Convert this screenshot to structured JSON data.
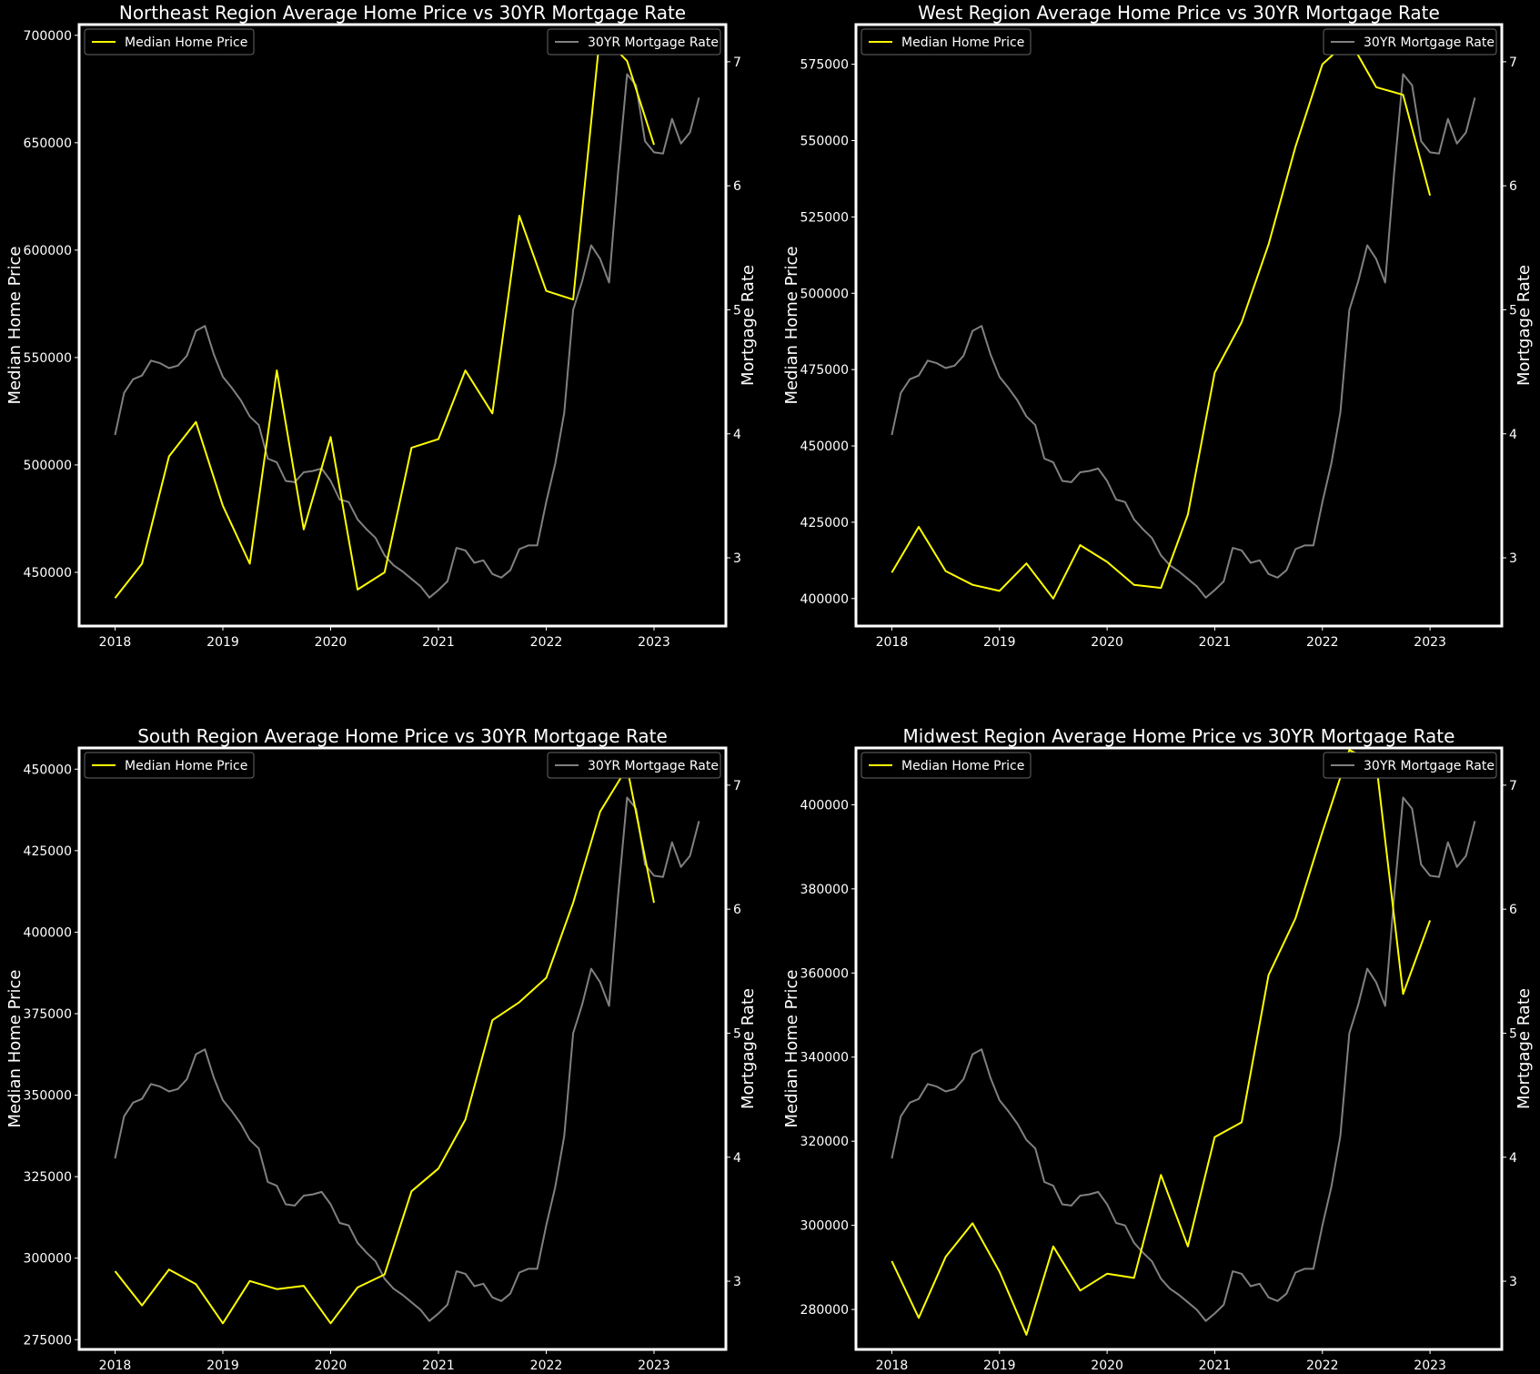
{
  "colors": {
    "background": "#000000",
    "text": "#ffffff",
    "frame": "#ffffff",
    "price_line": "#ffff00",
    "rate_line": "#808080"
  },
  "chart_data": [
    {
      "type": "line",
      "title": "Northeast Region Average Home Price vs 30YR Mortgage Rate",
      "xlabel": "",
      "ylabel": "Median Home Price",
      "y2label": "Mortgage Rate",
      "xlim": [
        "2017-09",
        "2023-09"
      ],
      "ylim": [
        425000,
        705000
      ],
      "y_ticks": [
        450000,
        500000,
        550000,
        600000,
        650000,
        700000
      ],
      "y2lim": [
        2.45,
        7.3
      ],
      "y2_ticks": [
        3,
        4,
        5,
        6,
        7
      ],
      "x_ticks": [
        "2018",
        "2019",
        "2020",
        "2021",
        "2022",
        "2023"
      ],
      "legend_left": "Median Home Price",
      "legend_right": "30YR Mortgage Rate",
      "legend_positions": [
        "upper left",
        "upper right"
      ],
      "grid": false,
      "series": [
        {
          "name": "Median Home Price",
          "axis": "left",
          "x": [
            "2018-01",
            "2018-04",
            "2018-07",
            "2018-10",
            "2019-01",
            "2019-04",
            "2019-07",
            "2019-10",
            "2020-01",
            "2020-04",
            "2020-07",
            "2020-10",
            "2021-01",
            "2021-04",
            "2021-07",
            "2021-10",
            "2022-01",
            "2022-04",
            "2022-07",
            "2022-10",
            "2023-01"
          ],
          "values": [
            438000,
            454000,
            504000,
            520000,
            481000,
            454000,
            544000,
            470000,
            513000,
            442000,
            450000,
            508000,
            512000,
            544000,
            524000,
            616000,
            581000,
            577000,
            701000,
            688000,
            649000
          ]
        }
      ]
    },
    {
      "type": "line",
      "title": "West Region Average Home Price vs 30YR Mortgage Rate",
      "xlabel": "",
      "ylabel": "Median Home Price",
      "y2label": "Mortgage Rate",
      "xlim": [
        "2017-09",
        "2023-09"
      ],
      "ylim": [
        391000,
        588000
      ],
      "y_ticks": [
        400000,
        425000,
        450000,
        475000,
        500000,
        525000,
        550000,
        575000
      ],
      "y2lim": [
        2.45,
        7.3
      ],
      "y2_ticks": [
        3,
        4,
        5,
        6,
        7
      ],
      "x_ticks": [
        "2018",
        "2019",
        "2020",
        "2021",
        "2022",
        "2023"
      ],
      "legend_left": "Median Home Price",
      "legend_right": "30YR Mortgage Rate",
      "legend_positions": [
        "upper left",
        "upper right"
      ],
      "grid": false,
      "series": [
        {
          "name": "Median Home Price",
          "axis": "left",
          "x": [
            "2018-01",
            "2018-04",
            "2018-07",
            "2018-10",
            "2019-01",
            "2019-04",
            "2019-07",
            "2019-10",
            "2020-01",
            "2020-04",
            "2020-07",
            "2020-10",
            "2021-01",
            "2021-04",
            "2021-07",
            "2021-10",
            "2022-01",
            "2022-04",
            "2022-07",
            "2022-10",
            "2023-01"
          ],
          "values": [
            408500,
            423500,
            409000,
            404500,
            402500,
            411500,
            400000,
            417500,
            412000,
            404500,
            403500,
            427500,
            474000,
            490500,
            516000,
            548000,
            575000,
            583000,
            567500,
            565000,
            532000
          ]
        }
      ]
    },
    {
      "type": "line",
      "title": "South Region Average Home Price vs 30YR Mortgage Rate",
      "xlabel": "",
      "ylabel": "Median Home Price",
      "y2label": "Mortgage Rate",
      "xlim": [
        "2017-09",
        "2023-09"
      ],
      "ylim": [
        272000,
        456500
      ],
      "y_ticks": [
        275000,
        300000,
        325000,
        350000,
        375000,
        400000,
        425000,
        450000
      ],
      "y2lim": [
        2.45,
        7.3
      ],
      "y2_ticks": [
        3,
        4,
        5,
        6,
        7
      ],
      "x_ticks": [
        "2018",
        "2019",
        "2020",
        "2021",
        "2022",
        "2023"
      ],
      "legend_left": "Median Home Price",
      "legend_right": "30YR Mortgage Rate",
      "legend_positions": [
        "upper left",
        "upper right"
      ],
      "grid": false,
      "series": [
        {
          "name": "Median Home Price",
          "axis": "left",
          "x": [
            "2018-01",
            "2018-04",
            "2018-07",
            "2018-10",
            "2019-01",
            "2019-04",
            "2019-07",
            "2019-10",
            "2020-01",
            "2020-04",
            "2020-07",
            "2020-10",
            "2021-01",
            "2021-04",
            "2021-07",
            "2021-10",
            "2022-01",
            "2022-04",
            "2022-07",
            "2022-10",
            "2023-01"
          ],
          "values": [
            296000,
            285500,
            296500,
            292000,
            280000,
            293000,
            290500,
            291500,
            280000,
            291000,
            295000,
            320500,
            327500,
            342500,
            373000,
            378500,
            386000,
            409000,
            437000,
            450500,
            409000
          ]
        }
      ]
    },
    {
      "type": "line",
      "title": "Midwest Region Average Home Price vs 30YR Mortgage Rate",
      "xlabel": "",
      "ylabel": "Median Home Price",
      "y2label": "Mortgage Rate",
      "xlim": [
        "2017-09",
        "2023-09"
      ],
      "ylim": [
        270500,
        413500
      ],
      "y_ticks": [
        280000,
        300000,
        320000,
        340000,
        360000,
        380000,
        400000
      ],
      "y2lim": [
        2.45,
        7.3
      ],
      "y2_ticks": [
        3,
        4,
        5,
        6,
        7
      ],
      "x_ticks": [
        "2018",
        "2019",
        "2020",
        "2021",
        "2022",
        "2023"
      ],
      "legend_left": "Median Home Price",
      "legend_right": "30YR Mortgage Rate",
      "legend_positions": [
        "upper left",
        "upper right"
      ],
      "grid": false,
      "series": [
        {
          "name": "Median Home Price",
          "axis": "left",
          "x": [
            "2018-01",
            "2018-04",
            "2018-07",
            "2018-10",
            "2019-01",
            "2019-04",
            "2019-07",
            "2019-10",
            "2020-01",
            "2020-04",
            "2020-07",
            "2020-10",
            "2021-01",
            "2021-04",
            "2021-07",
            "2021-10",
            "2022-01",
            "2022-04",
            "2022-07",
            "2022-10",
            "2023-01"
          ],
          "values": [
            291500,
            278000,
            292500,
            300500,
            289000,
            274000,
            295000,
            284500,
            288500,
            287500,
            312000,
            295000,
            321000,
            324500,
            359500,
            373000,
            393500,
            413000,
            410000,
            355000,
            372500
          ]
        }
      ]
    }
  ],
  "mortgage_rate_30yr": {
    "name": "30YR Mortgage Rate",
    "axis": "right",
    "x": [
      "2018-01",
      "2018-02",
      "2018-03",
      "2018-04",
      "2018-05",
      "2018-06",
      "2018-07",
      "2018-08",
      "2018-09",
      "2018-10",
      "2018-11",
      "2018-12",
      "2019-01",
      "2019-02",
      "2019-03",
      "2019-04",
      "2019-05",
      "2019-06",
      "2019-07",
      "2019-08",
      "2019-09",
      "2019-10",
      "2019-11",
      "2019-12",
      "2020-01",
      "2020-02",
      "2020-03",
      "2020-04",
      "2020-05",
      "2020-06",
      "2020-07",
      "2020-08",
      "2020-09",
      "2020-10",
      "2020-11",
      "2020-12",
      "2021-01",
      "2021-02",
      "2021-03",
      "2021-04",
      "2021-05",
      "2021-06",
      "2021-07",
      "2021-08",
      "2021-09",
      "2021-10",
      "2021-11",
      "2021-12",
      "2022-01",
      "2022-02",
      "2022-03",
      "2022-04",
      "2022-05",
      "2022-06",
      "2022-07",
      "2022-08",
      "2022-09",
      "2022-10",
      "2022-11",
      "2022-12",
      "2023-01",
      "2023-02",
      "2023-03",
      "2023-04",
      "2023-05",
      "2023-06"
    ],
    "values": [
      3.99,
      4.33,
      4.44,
      4.47,
      4.59,
      4.57,
      4.53,
      4.55,
      4.63,
      4.83,
      4.87,
      4.64,
      4.46,
      4.37,
      4.27,
      4.14,
      4.07,
      3.8,
      3.77,
      3.62,
      3.61,
      3.69,
      3.7,
      3.72,
      3.62,
      3.47,
      3.45,
      3.31,
      3.23,
      3.16,
      3.02,
      2.94,
      2.89,
      2.83,
      2.77,
      2.68,
      2.74,
      2.81,
      3.08,
      3.06,
      2.96,
      2.98,
      2.87,
      2.84,
      2.9,
      3.07,
      3.1,
      3.1,
      3.45,
      3.76,
      4.17,
      5.0,
      5.23,
      5.52,
      5.41,
      5.22,
      6.11,
      6.9,
      6.81,
      6.36,
      6.27,
      6.26,
      6.54,
      6.34,
      6.43,
      6.71
    ]
  }
}
